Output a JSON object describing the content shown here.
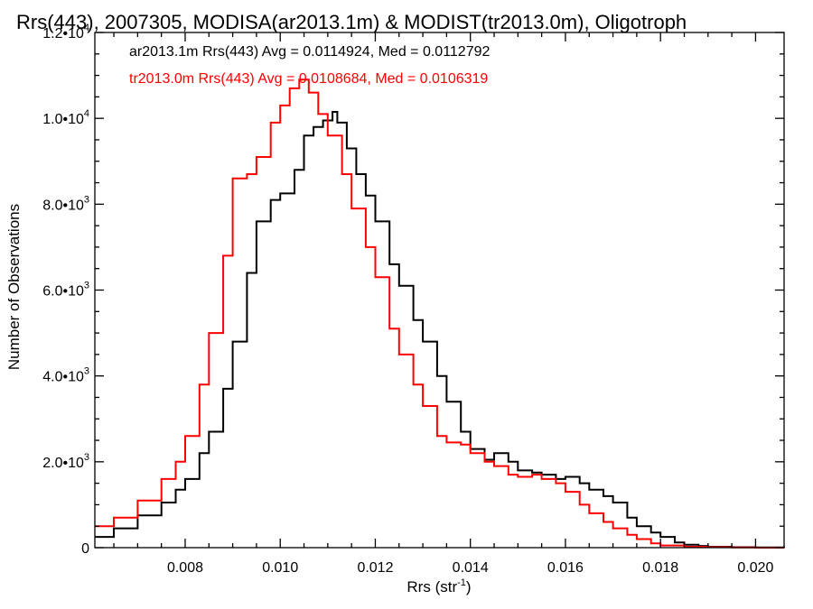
{
  "chart_data": {
    "type": "line",
    "step": true,
    "title": "Rrs(443), 2007305, MODISA(ar2013.1m) & MODIST(tr2013.0m), Oligotroph",
    "xlabel": "Rrs (str",
    "xlabel_sup": "-1",
    "xlabel_close": ")",
    "ylabel": "Number of Observations",
    "xlim": [
      0.0061,
      0.0206
    ],
    "ylim": [
      0,
      12000
    ],
    "grid": false,
    "x_ticks": [
      {
        "value": 0.008,
        "label": "0.008"
      },
      {
        "value": 0.01,
        "label": "0.010"
      },
      {
        "value": 0.012,
        "label": "0.012"
      },
      {
        "value": 0.014,
        "label": "0.014"
      },
      {
        "value": 0.016,
        "label": "0.016"
      },
      {
        "value": 0.018,
        "label": "0.018"
      },
      {
        "value": 0.02,
        "label": "0.020"
      }
    ],
    "y_ticks": [
      {
        "value": 0,
        "label": "0",
        "exp": ""
      },
      {
        "value": 2000,
        "label": "2.0•10",
        "exp": "3"
      },
      {
        "value": 4000,
        "label": "4.0•10",
        "exp": "3"
      },
      {
        "value": 6000,
        "label": "6.0•10",
        "exp": "3"
      },
      {
        "value": 8000,
        "label": "8.0•10",
        "exp": "3"
      },
      {
        "value": 10000,
        "label": "1.0•10",
        "exp": "4"
      },
      {
        "value": 12000,
        "label": "1.2•10",
        "exp": "4"
      }
    ],
    "annotations": [
      {
        "text": "ar2013.1m Rrs(443) Avg = 0.0114924, Med = 0.0112792",
        "color": "#000000"
      },
      {
        "text": "tr2013.0m Rrs(443) Avg = 0.0108684, Med = 0.0106319",
        "color": "#ff0000"
      }
    ],
    "series": [
      {
        "label": "ar2013.1m",
        "color": "#000000",
        "x": [
          0.0061,
          0.0065,
          0.007,
          0.0075,
          0.0078,
          0.008,
          0.0083,
          0.0085,
          0.0088,
          0.009,
          0.0093,
          0.0095,
          0.0098,
          0.01,
          0.0103,
          0.0105,
          0.0107,
          0.0109,
          0.0111,
          0.0112,
          0.0114,
          0.0116,
          0.0118,
          0.012,
          0.0123,
          0.0125,
          0.0128,
          0.013,
          0.0133,
          0.0135,
          0.0138,
          0.014,
          0.0143,
          0.0145,
          0.0148,
          0.015,
          0.0153,
          0.0155,
          0.0158,
          0.016,
          0.0163,
          0.0165,
          0.0168,
          0.017,
          0.0173,
          0.0175,
          0.0178,
          0.018,
          0.0183,
          0.0185,
          0.0188,
          0.019,
          0.0195,
          0.02,
          0.0206
        ],
        "y": [
          250,
          450,
          750,
          1050,
          1350,
          1600,
          2200,
          2700,
          3700,
          4800,
          6400,
          7600,
          8100,
          8250,
          8800,
          9600,
          9800,
          9950,
          10150,
          9900,
          9300,
          8700,
          8200,
          7600,
          6600,
          6100,
          5300,
          4800,
          4000,
          3400,
          2700,
          2300,
          2050,
          2200,
          2000,
          1800,
          1750,
          1700,
          1600,
          1650,
          1500,
          1350,
          1200,
          1050,
          700,
          500,
          350,
          250,
          120,
          70,
          40,
          20,
          10,
          5,
          0
        ]
      },
      {
        "label": "tr2013.0m",
        "color": "#ff0000",
        "x": [
          0.0061,
          0.0065,
          0.007,
          0.0075,
          0.0078,
          0.008,
          0.0083,
          0.0085,
          0.0088,
          0.009,
          0.0093,
          0.0095,
          0.0098,
          0.01,
          0.0102,
          0.0104,
          0.0106,
          0.0108,
          0.011,
          0.0113,
          0.0115,
          0.0118,
          0.012,
          0.0123,
          0.0125,
          0.0128,
          0.013,
          0.0133,
          0.0135,
          0.0138,
          0.014,
          0.0143,
          0.0145,
          0.0148,
          0.015,
          0.0153,
          0.0155,
          0.0158,
          0.016,
          0.0163,
          0.0165,
          0.0168,
          0.017,
          0.0173,
          0.0175,
          0.0178,
          0.018,
          0.0185,
          0.019,
          0.0195,
          0.02,
          0.0206
        ],
        "y": [
          500,
          700,
          1100,
          1600,
          2000,
          2600,
          3800,
          5000,
          6800,
          8600,
          8700,
          9100,
          9900,
          10300,
          10700,
          10900,
          10600,
          10100,
          9600,
          8700,
          7900,
          7000,
          6300,
          5100,
          4500,
          3800,
          3300,
          2600,
          2450,
          2400,
          2200,
          2000,
          1900,
          1700,
          1650,
          1700,
          1600,
          1500,
          1300,
          1000,
          800,
          600,
          450,
          300,
          200,
          100,
          50,
          20,
          10,
          5,
          0,
          0
        ]
      }
    ]
  }
}
